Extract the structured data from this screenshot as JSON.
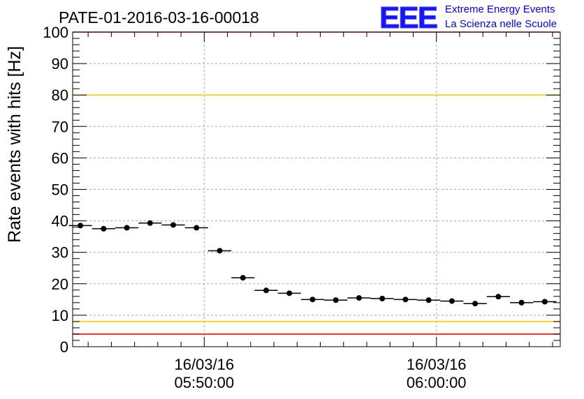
{
  "chart_data": {
    "type": "scatter",
    "title": "PATE-01-2016-03-16-00018",
    "ylabel": "Rate events with hits [Hz]",
    "xlabel": "",
    "ylim": [
      0,
      100
    ],
    "yticks": [
      0,
      10,
      20,
      30,
      40,
      50,
      60,
      70,
      80,
      90,
      100
    ],
    "ytick_labels": [
      "0",
      "10",
      "20",
      "30",
      "40",
      "50",
      "60",
      "70",
      "80",
      "90",
      "100"
    ],
    "xlim": [
      "05:44:20",
      "06:05:20"
    ],
    "xticks": [
      {
        "time": "05:50:00",
        "date_label": "16/03/16",
        "time_label": "05:50:00"
      },
      {
        "time": "06:00:00",
        "date_label": "16/03/16",
        "time_label": "06:00:00"
      }
    ],
    "grid": true,
    "bin_width_seconds": 60,
    "series": [
      {
        "color": "#000000",
        "x": [
          "05:44:40",
          "05:45:40",
          "05:46:40",
          "05:47:40",
          "05:48:40",
          "05:49:40",
          "05:50:40",
          "05:51:40",
          "05:52:40",
          "05:53:40",
          "05:54:40",
          "05:55:40",
          "05:56:40",
          "05:57:40",
          "05:58:40",
          "05:59:40",
          "06:00:40",
          "06:01:40",
          "06:02:40",
          "06:03:40",
          "06:04:40"
        ],
        "values": [
          38.5,
          37.5,
          37.8,
          39.3,
          38.7,
          37.8,
          30.5,
          21.9,
          17.9,
          17.0,
          15.0,
          14.8,
          15.5,
          15.3,
          15.0,
          14.8,
          14.5,
          13.7,
          15.9,
          14.0,
          14.3
        ]
      }
    ],
    "reference_lines": [
      {
        "value": 100,
        "color": "#ff0000"
      },
      {
        "value": 80,
        "color": "#ffcc00"
      },
      {
        "value": 8,
        "color": "#ffcc00"
      },
      {
        "value": 4,
        "color": "#ff0000"
      }
    ]
  },
  "logo": {
    "text": "EEE",
    "line1": "Extreme Energy Events",
    "line2": "La Scienza nelle Scuole",
    "color": "#0000ff"
  }
}
